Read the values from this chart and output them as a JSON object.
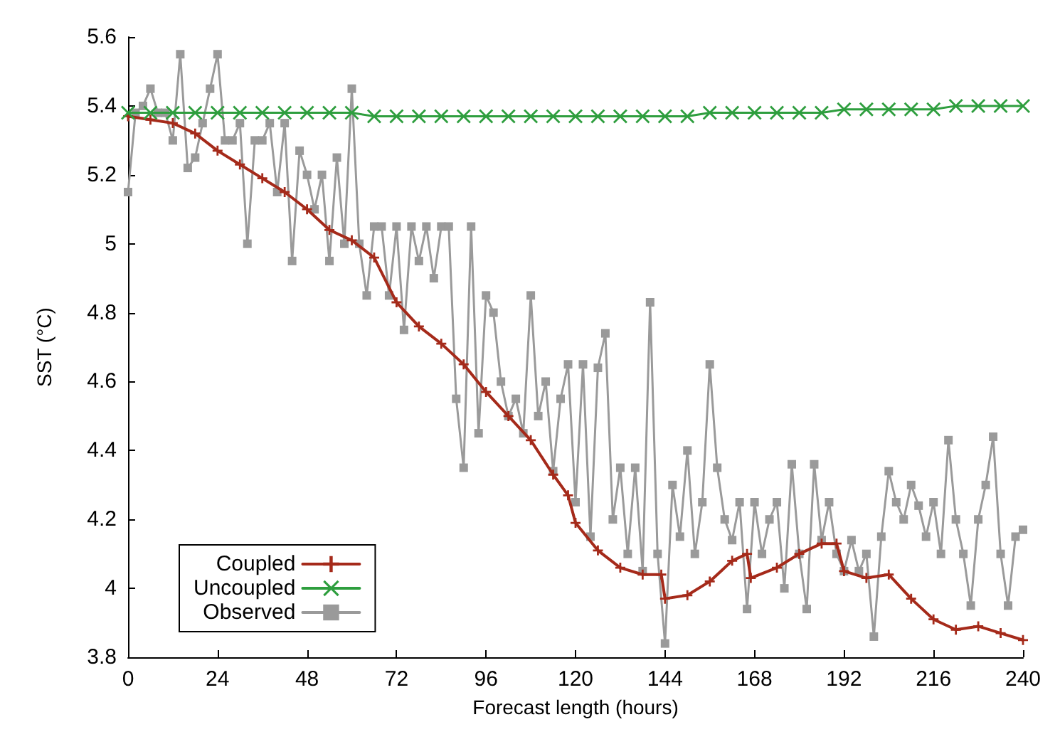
{
  "chart_data": {
    "type": "line",
    "xlabel": "Forecast length (hours)",
    "ylabel": "SST (°C)",
    "xlim": [
      0,
      240
    ],
    "xticks": [
      0,
      24,
      48,
      72,
      96,
      120,
      144,
      168,
      192,
      216,
      240
    ],
    "ylim": [
      3.8,
      5.6
    ],
    "yticks": [
      3.8,
      4,
      4.2,
      4.4,
      4.6,
      4.8,
      5,
      5.2,
      5.4,
      5.6
    ],
    "grid": false,
    "legend": "bottom left",
    "line_style": "solid",
    "series": [
      {
        "name": "Coupled",
        "color": "#a52a1a",
        "marker": "cross",
        "x": [
          0,
          6,
          12,
          18,
          24,
          30,
          36,
          42,
          48,
          54,
          60,
          66,
          72,
          78,
          84,
          90,
          96,
          102,
          108,
          114,
          118,
          120,
          126,
          132,
          138,
          143,
          144,
          150,
          156,
          162,
          166,
          167,
          174,
          180,
          186,
          190,
          192,
          198,
          204,
          210,
          216,
          222,
          228,
          234,
          240
        ],
        "values": [
          5.37,
          5.36,
          5.35,
          5.32,
          5.27,
          5.23,
          5.19,
          5.15,
          5.1,
          5.04,
          5.01,
          4.96,
          4.83,
          4.76,
          4.71,
          4.65,
          4.57,
          4.5,
          4.43,
          4.33,
          4.27,
          4.19,
          4.11,
          4.06,
          4.04,
          4.04,
          3.97,
          3.98,
          4.02,
          4.08,
          4.1,
          4.03,
          4.06,
          4.1,
          4.13,
          4.13,
          4.05,
          4.03,
          4.04,
          3.97,
          3.91,
          3.88,
          3.89,
          3.87,
          3.85
        ]
      },
      {
        "name": "Uncoupled",
        "color": "#2e9e3e",
        "marker": "x",
        "x": [
          0,
          6,
          12,
          18,
          24,
          30,
          36,
          42,
          48,
          54,
          60,
          66,
          72,
          78,
          84,
          90,
          96,
          102,
          108,
          114,
          120,
          126,
          132,
          138,
          144,
          150,
          156,
          162,
          168,
          174,
          180,
          186,
          192,
          198,
          204,
          210,
          216,
          222,
          228,
          234,
          240
        ],
        "values": [
          5.38,
          5.38,
          5.38,
          5.38,
          5.38,
          5.38,
          5.38,
          5.38,
          5.38,
          5.38,
          5.38,
          5.37,
          5.37,
          5.37,
          5.37,
          5.37,
          5.37,
          5.37,
          5.37,
          5.37,
          5.37,
          5.37,
          5.37,
          5.37,
          5.37,
          5.37,
          5.38,
          5.38,
          5.38,
          5.38,
          5.38,
          5.38,
          5.39,
          5.39,
          5.39,
          5.39,
          5.39,
          5.4,
          5.4,
          5.4,
          5.4
        ]
      },
      {
        "name": "Observed",
        "color": "#9a9a9a",
        "marker": "square",
        "x": [
          0,
          2,
          4,
          6,
          8,
          10,
          12,
          14,
          16,
          18,
          20,
          22,
          24,
          26,
          28,
          30,
          32,
          34,
          36,
          38,
          40,
          42,
          44,
          46,
          48,
          50,
          52,
          54,
          56,
          58,
          60,
          62,
          64,
          66,
          68,
          70,
          72,
          74,
          76,
          78,
          80,
          82,
          84,
          86,
          88,
          90,
          92,
          94,
          96,
          98,
          100,
          102,
          104,
          106,
          108,
          110,
          112,
          114,
          116,
          118,
          120,
          122,
          124,
          126,
          128,
          130,
          132,
          134,
          136,
          138,
          140,
          142,
          144,
          146,
          148,
          150,
          152,
          154,
          156,
          158,
          160,
          162,
          164,
          166,
          168,
          170,
          172,
          174,
          176,
          178,
          180,
          182,
          184,
          186,
          188,
          190,
          192,
          194,
          196,
          198,
          200,
          202,
          204,
          206,
          208,
          210,
          212,
          214,
          216,
          218,
          220,
          222,
          224,
          226,
          228,
          230,
          232,
          234,
          236,
          238,
          240
        ],
        "values": [
          5.15,
          5.38,
          5.4,
          5.45,
          5.38,
          5.38,
          5.3,
          5.55,
          5.22,
          5.25,
          5.35,
          5.45,
          5.55,
          5.3,
          5.3,
          5.35,
          5.0,
          5.3,
          5.3,
          5.35,
          5.15,
          5.35,
          4.95,
          5.27,
          5.2,
          5.1,
          5.2,
          4.95,
          5.25,
          5.0,
          5.45,
          5.0,
          4.85,
          5.05,
          5.05,
          4.85,
          5.05,
          4.75,
          5.05,
          4.95,
          5.05,
          4.9,
          5.05,
          5.05,
          4.55,
          4.35,
          5.05,
          4.45,
          4.85,
          4.8,
          4.6,
          4.5,
          4.55,
          4.45,
          4.85,
          4.5,
          4.6,
          4.34,
          4.55,
          4.65,
          4.25,
          4.65,
          4.15,
          4.64,
          4.74,
          4.2,
          4.35,
          4.1,
          4.35,
          4.05,
          4.83,
          4.1,
          3.84,
          4.3,
          4.15,
          4.4,
          4.1,
          4.25,
          4.65,
          4.35,
          4.2,
          4.14,
          4.25,
          3.94,
          4.25,
          4.1,
          4.2,
          4.25,
          4.0,
          4.36,
          4.1,
          3.94,
          4.36,
          4.14,
          4.25,
          4.1,
          4.05,
          4.14,
          4.05,
          4.1,
          3.86,
          4.15,
          4.34,
          4.25,
          4.2,
          4.3,
          4.24,
          4.15,
          4.25,
          4.1,
          4.43,
          4.2,
          4.1,
          3.95,
          4.2,
          4.3,
          4.44,
          4.1,
          3.95,
          4.15,
          4.17
        ]
      }
    ]
  }
}
